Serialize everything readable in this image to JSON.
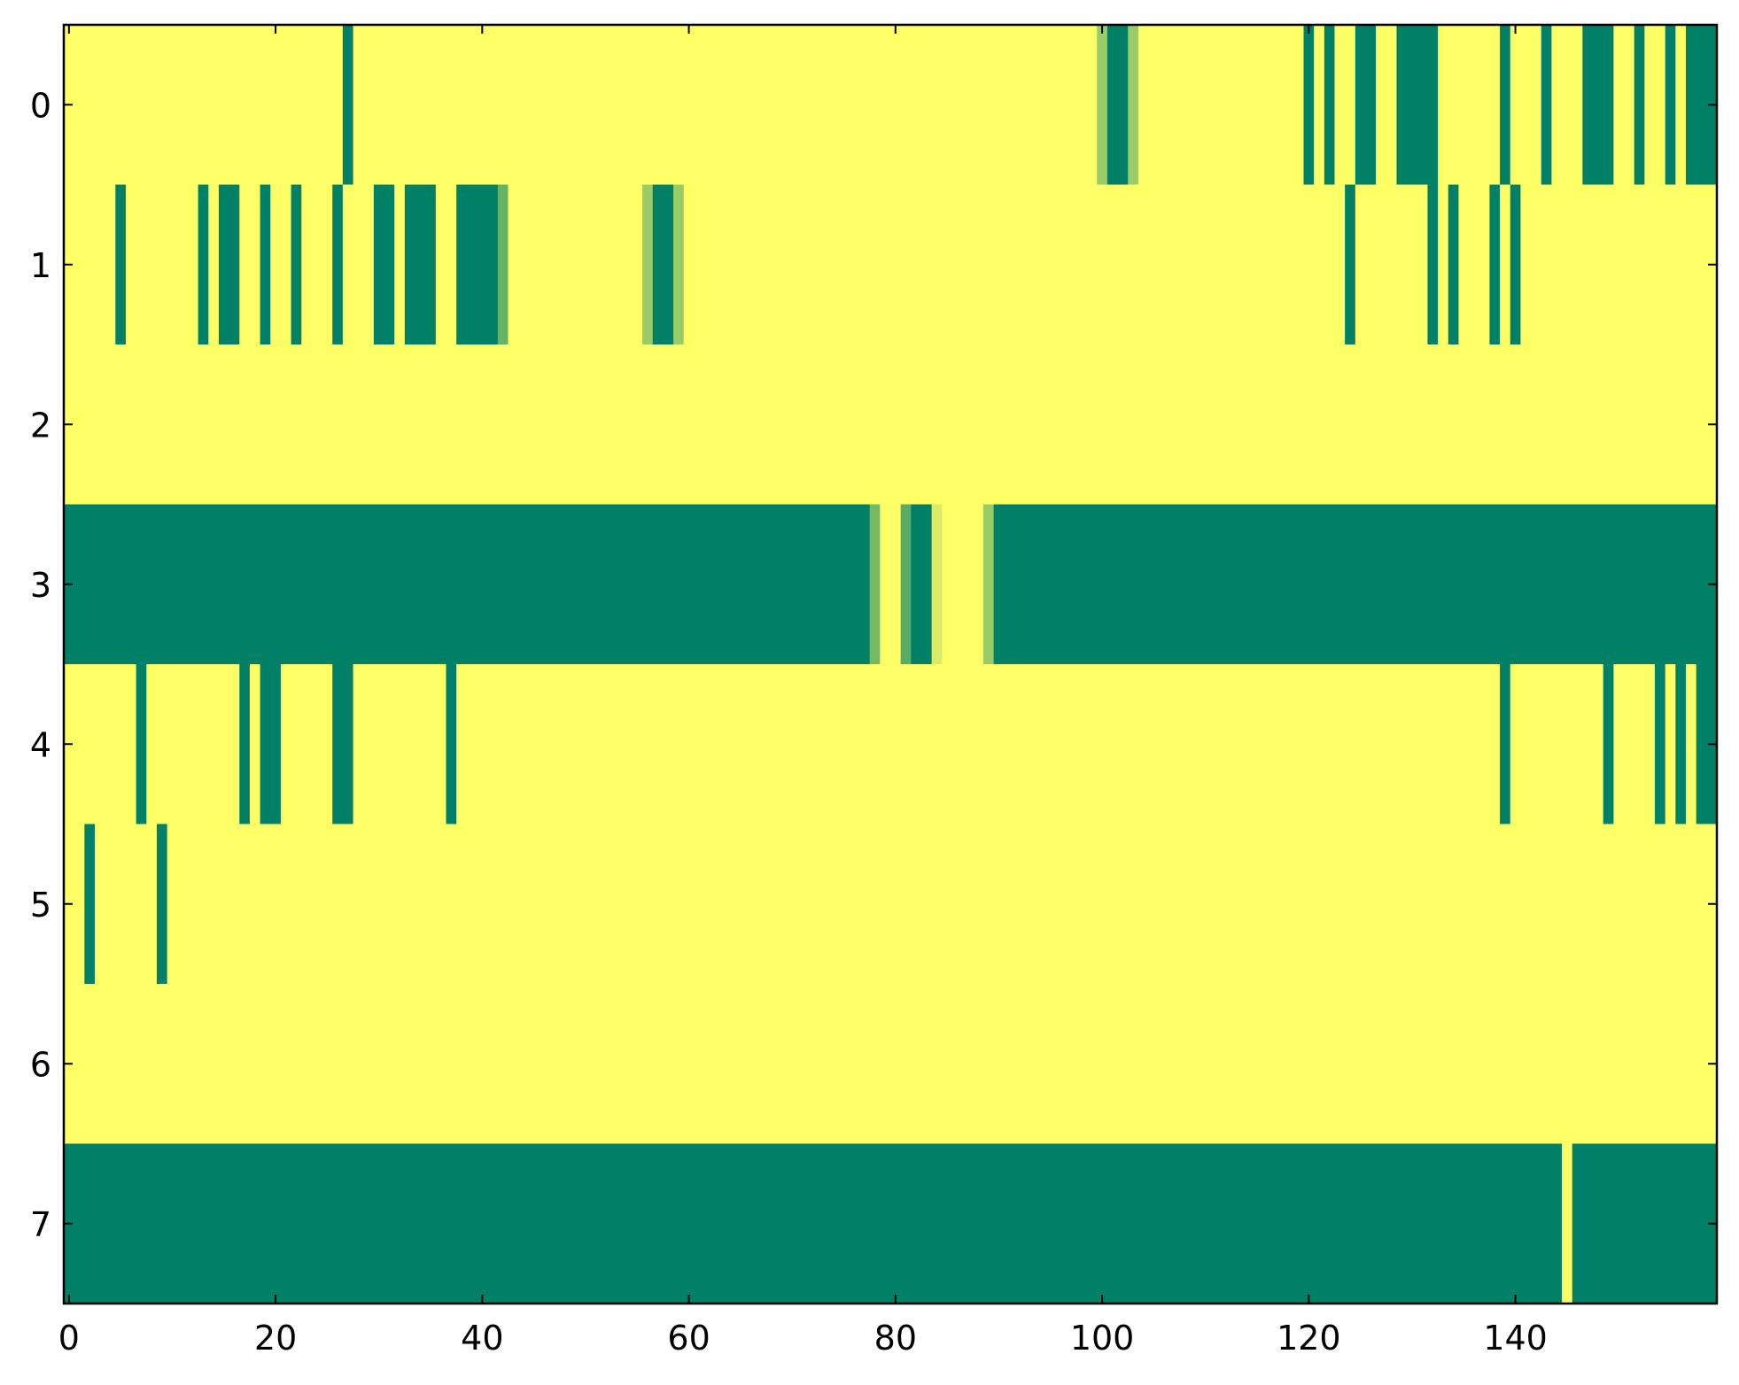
{
  "chart_data": {
    "type": "heatmap",
    "xlim": [
      -0.5,
      159.5
    ],
    "xticks": [
      0,
      20,
      40,
      60,
      80,
      100,
      120,
      140
    ],
    "ylim": [
      7.5,
      -0.5
    ],
    "yticks": [
      0,
      1,
      2,
      3,
      4,
      5,
      6,
      7
    ],
    "clim": [
      0,
      1
    ],
    "cmap_colors": [
      "#008066",
      "#ffff66"
    ],
    "values": [
      [
        1,
        1,
        1,
        1,
        1,
        1,
        1,
        1,
        1,
        1,
        1,
        1,
        1,
        1,
        1,
        1,
        1,
        1,
        1,
        1,
        1,
        1,
        1,
        1,
        1,
        1,
        1,
        0,
        1,
        1,
        1,
        1,
        1,
        1,
        1,
        1,
        1,
        1,
        1,
        1,
        1,
        1,
        1,
        1,
        1,
        1,
        1,
        1,
        1,
        1,
        1,
        1,
        1,
        1,
        1,
        1,
        1,
        1,
        1,
        1,
        1,
        1,
        1,
        1,
        1,
        1,
        1,
        1,
        1,
        1,
        1,
        1,
        1,
        1,
        1,
        1,
        1,
        1,
        1,
        1,
        1,
        1,
        1,
        1,
        1,
        1,
        1,
        1,
        1,
        1,
        1,
        1,
        1,
        1,
        1,
        1,
        1,
        1,
        1,
        1,
        0.6,
        0,
        0,
        0.6,
        1,
        1,
        1,
        1,
        1,
        1,
        1,
        1,
        1,
        1,
        1,
        1,
        1,
        1,
        1,
        1,
        0,
        1,
        0,
        1,
        1,
        0,
        0,
        1,
        1,
        0,
        0,
        0,
        0,
        1,
        1,
        1,
        1,
        1,
        1,
        0,
        1,
        1,
        1,
        0,
        1,
        1,
        1,
        0,
        0,
        0,
        1,
        1,
        0,
        1,
        1,
        0,
        1,
        0,
        0,
        0
      ],
      [
        1,
        1,
        1,
        1,
        1,
        0,
        1,
        1,
        1,
        1,
        1,
        1,
        1,
        0,
        1,
        0,
        0,
        1,
        1,
        0,
        1,
        1,
        0,
        1,
        1,
        1,
        0,
        1,
        1,
        1,
        0,
        0,
        1,
        0,
        0,
        0,
        1,
        1,
        0,
        0,
        0,
        0,
        0.4,
        1,
        1,
        1,
        1,
        1,
        1,
        1,
        1,
        1,
        1,
        1,
        1,
        1,
        0.6,
        0,
        0,
        0.6,
        1,
        1,
        1,
        1,
        1,
        1,
        1,
        1,
        1,
        1,
        1,
        1,
        1,
        1,
        1,
        1,
        1,
        1,
        1,
        1,
        1,
        1,
        1,
        1,
        1,
        1,
        1,
        1,
        1,
        1,
        1,
        1,
        1,
        1,
        1,
        1,
        1,
        1,
        1,
        1,
        1,
        1,
        1,
        1,
        1,
        1,
        1,
        1,
        1,
        1,
        1,
        1,
        1,
        1,
        1,
        1,
        1,
        1,
        1,
        1,
        1,
        1,
        1,
        1,
        0,
        1,
        1,
        1,
        1,
        1,
        1,
        1,
        0,
        1,
        0,
        1,
        1,
        1,
        0,
        1,
        0,
        1,
        1,
        1,
        1,
        1,
        1,
        1,
        1,
        1,
        1,
        1,
        1,
        1,
        1,
        1,
        1,
        1,
        1,
        1
      ],
      [
        1,
        1,
        1,
        1,
        1,
        1,
        1,
        1,
        1,
        1,
        1,
        1,
        1,
        1,
        1,
        1,
        1,
        1,
        1,
        1,
        1,
        1,
        1,
        1,
        1,
        1,
        1,
        1,
        1,
        1,
        1,
        1,
        1,
        1,
        1,
        1,
        1,
        1,
        1,
        1,
        1,
        1,
        1,
        1,
        1,
        1,
        1,
        1,
        1,
        1,
        1,
        1,
        1,
        1,
        1,
        1,
        1,
        1,
        1,
        1,
        1,
        1,
        1,
        1,
        1,
        1,
        1,
        1,
        1,
        1,
        1,
        1,
        1,
        1,
        1,
        1,
        1,
        1,
        1,
        1,
        1,
        1,
        1,
        1,
        1,
        1,
        1,
        1,
        1,
        1,
        1,
        1,
        1,
        1,
        1,
        1,
        1,
        1,
        1,
        1,
        1,
        1,
        1,
        1,
        1,
        1,
        1,
        1,
        1,
        1,
        1,
        1,
        1,
        1,
        1,
        1,
        1,
        1,
        1,
        1,
        1,
        1,
        1,
        1,
        1,
        1,
        1,
        1,
        1,
        1,
        1,
        1,
        1,
        1,
        1,
        1,
        1,
        1,
        1,
        1,
        1,
        1,
        1,
        1,
        1,
        1,
        1,
        1,
        1,
        1,
        1,
        1,
        1,
        1,
        1,
        1,
        1,
        1,
        1,
        1
      ],
      [
        0,
        0,
        0,
        0,
        0,
        0,
        0,
        0,
        0,
        0,
        0,
        0,
        0,
        0,
        0,
        0,
        0,
        0,
        0,
        0,
        0,
        0,
        0,
        0,
        0,
        0,
        0,
        0,
        0,
        0,
        0,
        0,
        0,
        0,
        0,
        0,
        0,
        0,
        0,
        0,
        0,
        0,
        0,
        0,
        0,
        0,
        0,
        0,
        0,
        0,
        0,
        0,
        0,
        0,
        0,
        0,
        0,
        0,
        0,
        0,
        0,
        0,
        0,
        0,
        0,
        0,
        0,
        0,
        0,
        0,
        0,
        0,
        0,
        0,
        0,
        0,
        0,
        0,
        0.45,
        1,
        1,
        0.35,
        0,
        0,
        0.85,
        1,
        1,
        1,
        1,
        0.6,
        0,
        0,
        0,
        0,
        0,
        0,
        0,
        0,
        0,
        0,
        0,
        0,
        0,
        0,
        0,
        0,
        0,
        0,
        0,
        0,
        0,
        0,
        0,
        0,
        0,
        0,
        0,
        0,
        0,
        0,
        0,
        0,
        0,
        0,
        0,
        0,
        0,
        0,
        0,
        0,
        0,
        0,
        0,
        0,
        0,
        0,
        0,
        0,
        0,
        0,
        0,
        0,
        0,
        0,
        0,
        0,
        0,
        0,
        0,
        0,
        0,
        0,
        0,
        0,
        0,
        0,
        0,
        0,
        0,
        0
      ],
      [
        1,
        1,
        1,
        1,
        1,
        1,
        1,
        0,
        1,
        1,
        1,
        1,
        1,
        1,
        1,
        1,
        1,
        0,
        1,
        0,
        0,
        1,
        1,
        1,
        1,
        1,
        0,
        0,
        1,
        1,
        1,
        1,
        1,
        1,
        1,
        1,
        1,
        0,
        1,
        1,
        1,
        1,
        1,
        1,
        1,
        1,
        1,
        1,
        1,
        1,
        1,
        1,
        1,
        1,
        1,
        1,
        1,
        1,
        1,
        1,
        1,
        1,
        1,
        1,
        1,
        1,
        1,
        1,
        1,
        1,
        1,
        1,
        1,
        1,
        1,
        1,
        1,
        1,
        1,
        1,
        1,
        1,
        1,
        1,
        1,
        1,
        1,
        1,
        1,
        1,
        1,
        1,
        1,
        1,
        1,
        1,
        1,
        1,
        1,
        1,
        1,
        1,
        1,
        1,
        1,
        1,
        1,
        1,
        1,
        1,
        1,
        1,
        1,
        1,
        1,
        1,
        1,
        1,
        1,
        1,
        1,
        1,
        1,
        1,
        1,
        1,
        1,
        1,
        1,
        1,
        1,
        1,
        1,
        1,
        1,
        1,
        1,
        1,
        1,
        0,
        1,
        1,
        1,
        1,
        1,
        1,
        1,
        1,
        1,
        0,
        1,
        1,
        1,
        1,
        0,
        1,
        0,
        1,
        0,
        0
      ],
      [
        1,
        1,
        0,
        1,
        1,
        1,
        1,
        1,
        1,
        0,
        1,
        1,
        1,
        1,
        1,
        1,
        1,
        1,
        1,
        1,
        1,
        1,
        1,
        1,
        1,
        1,
        1,
        1,
        1,
        1,
        1,
        1,
        1,
        1,
        1,
        1,
        1,
        1,
        1,
        1,
        1,
        1,
        1,
        1,
        1,
        1,
        1,
        1,
        1,
        1,
        1,
        1,
        1,
        1,
        1,
        1,
        1,
        1,
        1,
        1,
        1,
        1,
        1,
        1,
        1,
        1,
        1,
        1,
        1,
        1,
        1,
        1,
        1,
        1,
        1,
        1,
        1,
        1,
        1,
        1,
        1,
        1,
        1,
        1,
        1,
        1,
        1,
        1,
        1,
        1,
        1,
        1,
        1,
        1,
        1,
        1,
        1,
        1,
        1,
        1,
        1,
        1,
        1,
        1,
        1,
        1,
        1,
        1,
        1,
        1,
        1,
        1,
        1,
        1,
        1,
        1,
        1,
        1,
        1,
        1,
        1,
        1,
        1,
        1,
        1,
        1,
        1,
        1,
        1,
        1,
        1,
        1,
        1,
        1,
        1,
        1,
        1,
        1,
        1,
        1,
        1,
        1,
        1,
        1,
        1,
        1,
        1,
        1,
        1,
        1,
        1,
        1,
        1,
        1,
        1,
        1,
        1,
        1,
        1,
        1
      ],
      [
        1,
        1,
        1,
        1,
        1,
        1,
        1,
        1,
        1,
        1,
        1,
        1,
        1,
        1,
        1,
        1,
        1,
        1,
        1,
        1,
        1,
        1,
        1,
        1,
        1,
        1,
        1,
        1,
        1,
        1,
        1,
        1,
        1,
        1,
        1,
        1,
        1,
        1,
        1,
        1,
        1,
        1,
        1,
        1,
        1,
        1,
        1,
        1,
        1,
        1,
        1,
        1,
        1,
        1,
        1,
        1,
        1,
        1,
        1,
        1,
        1,
        1,
        1,
        1,
        1,
        1,
        1,
        1,
        1,
        1,
        1,
        1,
        1,
        1,
        1,
        1,
        1,
        1,
        1,
        1,
        1,
        1,
        1,
        1,
        1,
        1,
        1,
        1,
        1,
        1,
        1,
        1,
        1,
        1,
        1,
        1,
        1,
        1,
        1,
        1,
        1,
        1,
        1,
        1,
        1,
        1,
        1,
        1,
        1,
        1,
        1,
        1,
        1,
        1,
        1,
        1,
        1,
        1,
        1,
        1,
        1,
        1,
        1,
        1,
        1,
        1,
        1,
        1,
        1,
        1,
        1,
        1,
        1,
        1,
        1,
        1,
        1,
        1,
        1,
        1,
        1,
        1,
        1,
        1,
        1,
        1,
        1,
        1,
        1,
        1,
        1,
        1,
        1,
        1,
        1,
        1,
        1,
        1,
        1,
        1
      ],
      [
        0,
        0,
        0,
        0,
        0,
        0,
        0,
        0,
        0,
        0,
        0,
        0,
        0,
        0,
        0,
        0,
        0,
        0,
        0,
        0,
        0,
        0,
        0,
        0,
        0,
        0,
        0,
        0,
        0,
        0,
        0,
        0,
        0,
        0,
        0,
        0,
        0,
        0,
        0,
        0,
        0,
        0,
        0,
        0,
        0,
        0,
        0,
        0,
        0,
        0,
        0,
        0,
        0,
        0,
        0,
        0,
        0,
        0,
        0,
        0,
        0,
        0,
        0,
        0,
        0,
        0,
        0,
        0,
        0,
        0,
        0,
        0,
        0,
        0,
        0,
        0,
        0,
        0,
        0,
        0,
        0,
        0,
        0,
        0,
        0,
        0,
        0,
        0,
        0,
        0,
        0,
        0,
        0,
        0,
        0,
        0,
        0,
        0,
        0,
        0,
        0,
        0,
        0,
        0,
        0,
        0,
        0,
        0,
        0,
        0,
        0,
        0,
        0,
        0,
        0,
        0,
        0,
        0,
        0,
        0,
        0,
        0,
        0,
        0,
        0,
        0,
        0,
        0,
        0,
        0,
        0,
        0,
        0,
        0,
        0,
        0,
        0,
        0,
        0,
        0,
        0,
        0,
        0,
        0,
        0,
        1,
        0,
        0,
        0,
        0,
        0,
        0,
        0,
        0,
        0,
        0,
        0,
        0,
        0,
        0
      ]
    ]
  }
}
